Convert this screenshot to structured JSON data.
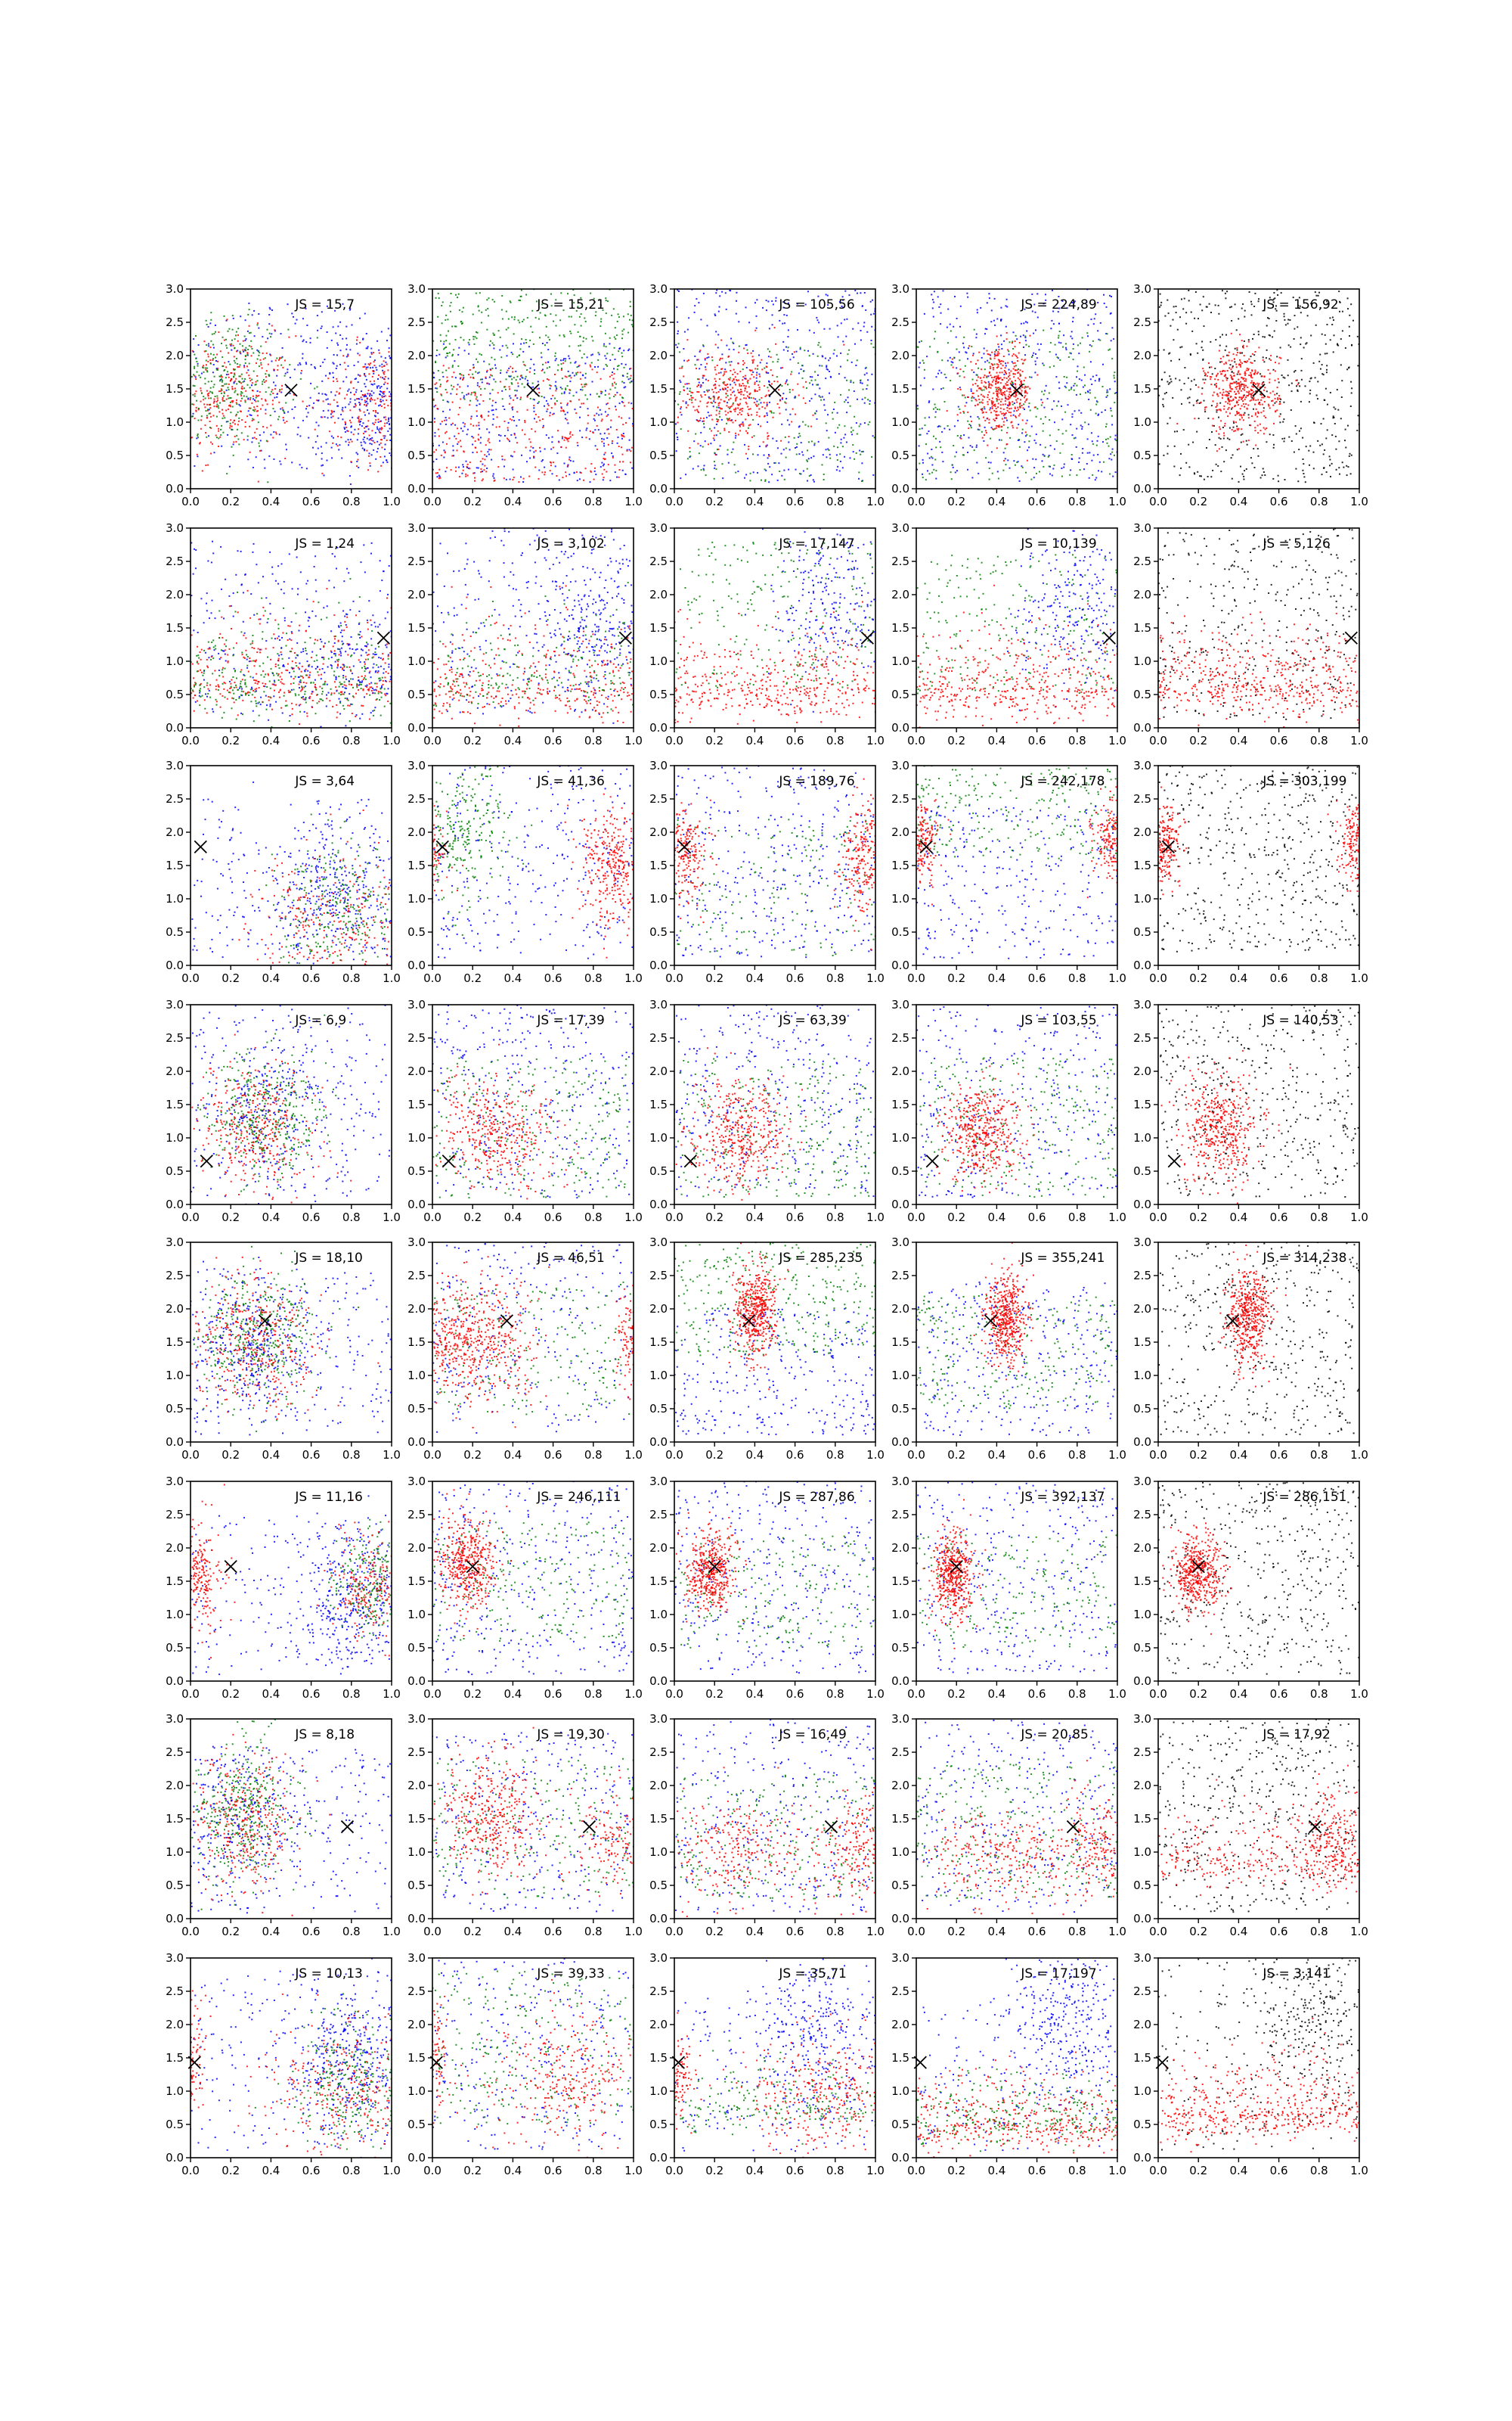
{
  "chart_data": {
    "type": "scatter",
    "layout_grid": {
      "rows": 8,
      "cols": 5
    },
    "xlim": [
      0.0,
      1.0
    ],
    "ylim": [
      0.0,
      3.0
    ],
    "xticks": [
      "0.0",
      "0.2",
      "0.4",
      "0.6",
      "0.8",
      "1.0"
    ],
    "yticks": [
      "0.0",
      "0.5",
      "1.0",
      "1.5",
      "2.0",
      "2.5",
      "3.0"
    ],
    "grid": false,
    "legend": "none",
    "colors": {
      "red": "#ff0000",
      "green": "#008000",
      "blue": "#0000ff",
      "black": "#000000"
    },
    "marker": "x",
    "rows": [
      {
        "marker_xy": [
          0.5,
          1.48
        ],
        "panels": [
          {
            "js_label": "JS = 15,7",
            "points": [
              {
                "color": "red",
                "kind": "mix"
              },
              {
                "color": "green",
                "kind": "blob",
                "cx": 0.2,
                "cy": 1.5
              }
            ]
          },
          {
            "js_label": "JS = 15,21",
            "points": [
              {
                "color": "green",
                "kind": "band",
                "cy": 2.3
              }
            ]
          },
          {
            "js_label": "JS = 105,56",
            "points": [
              {
                "color": "red",
                "kind": "blob",
                "cx": 0.3,
                "cy": 1.4
              }
            ]
          },
          {
            "js_label": "JS = 224,89",
            "points": [
              {
                "color": "red",
                "kind": "blob",
                "cx": 0.4,
                "cy": 1.45
              }
            ]
          },
          {
            "js_label": "JS = 156,92",
            "points": [
              {
                "color": "red",
                "kind": "blob",
                "cx": 0.42,
                "cy": 1.45
              }
            ]
          }
        ]
      },
      {
        "marker_xy": [
          0.96,
          1.35
        ],
        "panels": [
          {
            "js_label": "JS = 1,24"
          },
          {
            "js_label": "JS = 3,102"
          },
          {
            "js_label": "JS = 17,147"
          },
          {
            "js_label": "JS = 10,139"
          },
          {
            "js_label": "JS = 5,126"
          }
        ]
      },
      {
        "marker_xy": [
          0.05,
          1.78
        ],
        "panels": [
          {
            "js_label": "JS = 3,64"
          },
          {
            "js_label": "JS = 41,36"
          },
          {
            "js_label": "JS = 189,76"
          },
          {
            "js_label": "JS = 242,178"
          },
          {
            "js_label": "JS = 303,199"
          }
        ]
      },
      {
        "marker_xy": [
          0.08,
          0.65
        ],
        "panels": [
          {
            "js_label": "JS = 6,9"
          },
          {
            "js_label": "JS = 17,39"
          },
          {
            "js_label": "JS = 63,39"
          },
          {
            "js_label": "JS = 103,55"
          },
          {
            "js_label": "JS = 140,53"
          }
        ]
      },
      {
        "marker_xy": [
          0.37,
          1.82
        ],
        "panels": [
          {
            "js_label": "JS = 18,10"
          },
          {
            "js_label": "JS = 46,51"
          },
          {
            "js_label": "JS = 285,235"
          },
          {
            "js_label": "JS = 355,241"
          },
          {
            "js_label": "JS = 314,238"
          }
        ]
      },
      {
        "marker_xy": [
          0.2,
          1.72
        ],
        "panels": [
          {
            "js_label": "JS = 11,16"
          },
          {
            "js_label": "JS = 246,111"
          },
          {
            "js_label": "JS = 287,86"
          },
          {
            "js_label": "JS = 392,137"
          },
          {
            "js_label": "JS = 286,151"
          }
        ]
      },
      {
        "marker_xy": [
          0.78,
          1.38
        ],
        "panels": [
          {
            "js_label": "JS = 8,18"
          },
          {
            "js_label": "JS = 19,30"
          },
          {
            "js_label": "JS = 16,49"
          },
          {
            "js_label": "JS = 20,85"
          },
          {
            "js_label": "JS = 17,92"
          }
        ]
      },
      {
        "marker_xy": [
          0.02,
          1.43
        ],
        "panels": [
          {
            "js_label": "JS = 10,13"
          },
          {
            "js_label": "JS = 39,33"
          },
          {
            "js_label": "JS = 35,71"
          },
          {
            "js_label": "JS = 17,197"
          },
          {
            "js_label": "JS = 3,141"
          }
        ]
      }
    ]
  }
}
